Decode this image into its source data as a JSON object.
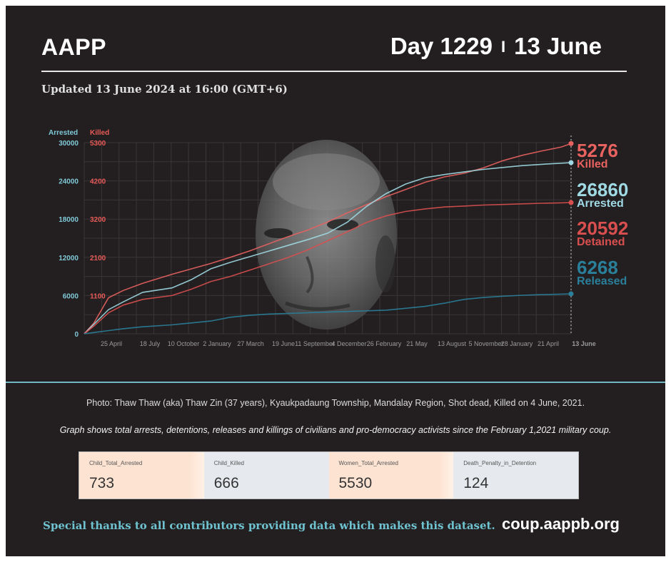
{
  "header": {
    "org": "AAPP",
    "day_label": "Day 1229",
    "separator": "I",
    "date_label": "13 June",
    "updated": "Updated 13 June 2024 at 16:00 (GMT+6)"
  },
  "chart_data": {
    "type": "line",
    "y_left_title": "Arrested",
    "y_right_title": "Killed",
    "y_left_ticks": [
      "30000",
      "24000",
      "18000",
      "12000",
      "6000",
      "0"
    ],
    "y_right_ticks": [
      "5300",
      "4200",
      "3200",
      "2100",
      "1100"
    ],
    "ylim_arrested": [
      0,
      30000
    ],
    "x_tick_labels": [
      "25 April",
      "18 July",
      "10 October",
      "2 January",
      "27 March",
      "19 June",
      "11 September",
      "4 December",
      "26 February",
      "21 May",
      "13 August",
      "5 November",
      "28 January",
      "21 April",
      "13 June"
    ],
    "x": [
      0,
      0.02,
      0.05,
      0.08,
      0.12,
      0.18,
      0.22,
      0.26,
      0.3,
      0.34,
      0.38,
      0.42,
      0.46,
      0.5,
      0.54,
      0.58,
      0.62,
      0.66,
      0.7,
      0.74,
      0.78,
      0.82,
      0.86,
      0.9,
      0.94,
      0.98,
      1.0
    ],
    "series": [
      {
        "name": "Killed",
        "color": "#e8625f",
        "values": [
          0,
          300,
          1000,
          1200,
          1400,
          1650,
          1800,
          1950,
          2120,
          2300,
          2500,
          2700,
          2880,
          3100,
          3350,
          3580,
          3800,
          4000,
          4200,
          4350,
          4450,
          4600,
          4800,
          4950,
          5070,
          5180,
          5276
        ]
      },
      {
        "name": "Arrested",
        "color": "#9fd9e3",
        "values": [
          0,
          1500,
          3800,
          5000,
          6500,
          7200,
          8500,
          10200,
          11200,
          12100,
          13000,
          13900,
          14800,
          15800,
          17500,
          20000,
          22000,
          23500,
          24500,
          25000,
          25400,
          25800,
          26100,
          26400,
          26600,
          26780,
          26860
        ]
      },
      {
        "name": "Detained",
        "color": "#d94f4f",
        "values": [
          0,
          1200,
          3300,
          4500,
          5400,
          6000,
          7000,
          8200,
          9000,
          10000,
          11000,
          12000,
          13200,
          14600,
          16000,
          17500,
          18500,
          19200,
          19600,
          19900,
          20050,
          20200,
          20300,
          20400,
          20480,
          20550,
          20592
        ]
      },
      {
        "name": "Released",
        "color": "#2a7f9a",
        "values": [
          0,
          200,
          500,
          800,
          1100,
          1400,
          1700,
          2000,
          2600,
          2900,
          3100,
          3200,
          3300,
          3400,
          3500,
          3600,
          3700,
          4000,
          4300,
          4800,
          5400,
          5700,
          5900,
          6050,
          6150,
          6220,
          6268
        ]
      }
    ],
    "labels": [
      {
        "value": "5276",
        "text": "Killed",
        "color": "#e8625f"
      },
      {
        "value": "26860",
        "text": "Arrested",
        "color": "#9fd9e3"
      },
      {
        "value": "20592",
        "text": "Detained",
        "color": "#d94f4f"
      },
      {
        "value": "6268",
        "text": "Released",
        "color": "#2a7f9a"
      }
    ],
    "grid": true
  },
  "photo_alt": "portrait photo",
  "caption": "Photo: Thaw Thaw (aka) Thaw Zin (37 years), Kyaukpadaung Township, Mandalay Region, Shot dead, Killed on 4 June, 2021.",
  "note": "Graph shows total arrests, detentions, releases and killings of civilians and pro-democracy activists since the February 1,2021 military coup.",
  "cards": [
    {
      "label": "Child_Total_Arrested",
      "value": "733",
      "style": "peach"
    },
    {
      "label": "Child_Killed",
      "value": "666",
      "style": "grey"
    },
    {
      "label": "Women_Total_Arrested",
      "value": "5530",
      "style": "peach"
    },
    {
      "label": "Death_Penalty_in_Detention",
      "value": "124",
      "style": "grey"
    }
  ],
  "footer": {
    "thanks": "Special thanks to all contributors providing data which makes this dataset.",
    "site": "coup.aappb.org"
  }
}
